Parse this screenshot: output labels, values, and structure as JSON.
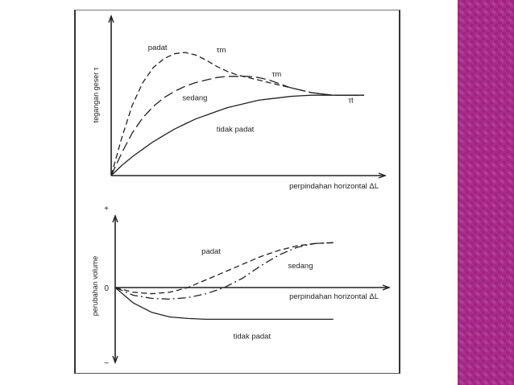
{
  "colors": {
    "side_band": "#b02a8f",
    "ink": "#222222",
    "background": "#ffffff"
  },
  "chart_data": [
    {
      "type": "line",
      "title": "",
      "ylabel": "tegangan geser τ",
      "xlabel": "perpindahan horizontal ΔL",
      "xlim": [
        0,
        100
      ],
      "ylim": [
        0,
        100
      ],
      "grid": false,
      "legend": "none",
      "series": [
        {
          "name": "padat",
          "style": "dashed",
          "x": [
            0,
            4,
            8,
            12,
            16,
            20,
            24,
            28,
            32,
            36,
            40,
            44,
            48,
            52,
            56,
            60,
            64,
            68,
            72,
            76,
            80,
            84,
            88,
            92,
            96
          ],
          "y": [
            0,
            30,
            56,
            74,
            86,
            93,
            97,
            98,
            96,
            92,
            87,
            83,
            80,
            78,
            76,
            74,
            72,
            70,
            68,
            66,
            65,
            64,
            64,
            64,
            64
          ]
        },
        {
          "name": "sedang",
          "style": "longdash",
          "x": [
            0,
            4,
            8,
            12,
            16,
            20,
            24,
            28,
            32,
            36,
            40,
            44,
            48,
            52,
            56,
            60,
            64,
            68,
            72,
            76,
            80,
            84,
            88,
            92,
            96
          ],
          "y": [
            0,
            18,
            34,
            46,
            55,
            62,
            67,
            71,
            74,
            76,
            78,
            79,
            79,
            79,
            78,
            76,
            73,
            70,
            68,
            66,
            65,
            64,
            64,
            64,
            64
          ]
        },
        {
          "name": "tidak padat",
          "style": "solid",
          "x": [
            0,
            4,
            8,
            12,
            16,
            20,
            24,
            28,
            32,
            36,
            40,
            44,
            48,
            52,
            56,
            60,
            64,
            68,
            72,
            76,
            80,
            84,
            88,
            92,
            96
          ],
          "y": [
            0,
            8,
            15,
            21,
            27,
            32,
            37,
            41,
            45,
            48,
            51,
            54,
            56,
            58,
            60,
            61,
            62,
            63,
            63.5,
            64,
            64,
            64,
            64,
            64,
            64
          ]
        }
      ],
      "annotations": [
        {
          "text": "padat",
          "x": 14,
          "y": 100
        },
        {
          "text": "τm",
          "x": 40,
          "y": 98
        },
        {
          "text": "τm",
          "x": 61,
          "y": 79
        },
        {
          "text": "sedang",
          "x": 27,
          "y": 60
        },
        {
          "text": "τt",
          "x": 90,
          "y": 58
        },
        {
          "text": "tidak padat",
          "x": 40,
          "y": 35
        }
      ]
    },
    {
      "type": "line",
      "title": "",
      "ylabel": "perubahan volume",
      "xlabel": "perpindahan horizontal ΔL",
      "xlim": [
        0,
        100
      ],
      "ylim": [
        -100,
        100
      ],
      "ytick_labels": [
        "+",
        "0",
        "−"
      ],
      "grid": false,
      "legend": "none",
      "series": [
        {
          "name": "padat",
          "style": "dashed",
          "x": [
            0,
            8,
            16,
            24,
            32,
            40,
            48,
            56,
            64,
            72,
            80,
            88,
            96
          ],
          "y": [
            0,
            -6,
            -8,
            -6,
            0,
            10,
            20,
            30,
            40,
            48,
            54,
            57,
            58
          ]
        },
        {
          "name": "sedang",
          "style": "dashdot",
          "x": [
            0,
            8,
            16,
            24,
            32,
            40,
            48,
            56,
            64,
            72,
            80,
            88,
            96
          ],
          "y": [
            0,
            -10,
            -14,
            -15,
            -13,
            -8,
            0,
            12,
            28,
            42,
            52,
            57,
            58
          ]
        },
        {
          "name": "tidak padat",
          "style": "solid",
          "x": [
            0,
            8,
            16,
            24,
            32,
            40,
            48,
            56,
            64,
            72,
            80,
            88,
            96
          ],
          "y": [
            0,
            -20,
            -32,
            -38,
            -40,
            -41,
            -41,
            -41,
            -41,
            -41,
            -41,
            -41,
            -41
          ]
        }
      ],
      "annotations": [
        {
          "text": "padat",
          "x": 38,
          "y": 44
        },
        {
          "text": "sedang",
          "x": 76,
          "y": 25
        },
        {
          "text": "tidak padat",
          "x": 52,
          "y": -66
        }
      ]
    }
  ]
}
